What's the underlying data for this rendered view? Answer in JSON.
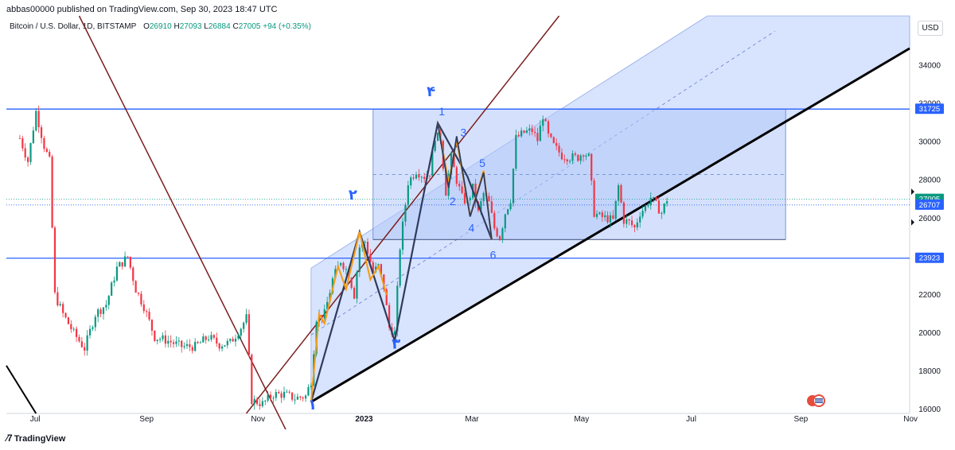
{
  "header": {
    "publisher": "abbas00000 published on TradingView.com, Sep 30, 2023 18:47 UTC"
  },
  "legend": {
    "symbol": "Bitcoin / U.S. Dollar, 1D, BITSTAMP",
    "open_label": "O",
    "open": "26910",
    "high_label": "H",
    "high": "27093",
    "low_label": "L",
    "low": "26884",
    "close_label": "C",
    "close": "27005",
    "change": "+94 (+0.35%)"
  },
  "currency_button": "USD",
  "footer": {
    "brand": "TradingView"
  },
  "colors": {
    "up": "#089981",
    "down": "#f23645",
    "accent": "#2962ff",
    "channel_fill": "#c7d7fc",
    "trendline": "#7b1e1e",
    "wave_orange": "#f39c12",
    "wave_dark": "#2f3b5c"
  },
  "chart_data": {
    "type": "candlestick",
    "x_ticks": [
      "Jul",
      "Sep",
      "Nov",
      "2023",
      "Mar",
      "May",
      "Jul",
      "Sep",
      "Nov"
    ],
    "y_ticks": [
      "34000",
      "32000",
      "30000",
      "28000",
      "26000",
      "22000",
      "20000",
      "18000",
      "16000"
    ],
    "ylim": [
      15800,
      36600
    ],
    "price_labels": [
      {
        "value": 31725,
        "text": "31725",
        "color": "#2962ff"
      },
      {
        "value": 27005,
        "text": "27005",
        "color": "#089981"
      },
      {
        "value": 26707,
        "text": "26707",
        "color": "#2962ff"
      },
      {
        "value": 23923,
        "text": "23923",
        "color": "#2962ff"
      }
    ],
    "horizontal_levels": [
      31725,
      23923
    ],
    "wave_labels_blue_numbers": [
      "1",
      "2",
      "3",
      "4",
      "5",
      "6"
    ],
    "wave_labels_arabic": [
      "۴",
      "۲",
      "۳",
      "۱"
    ],
    "close_path": [
      {
        "t": 0,
        "p": 30200
      },
      {
        "t": 3,
        "p": 29000
      },
      {
        "t": 6,
        "p": 31600
      },
      {
        "t": 9,
        "p": 29800
      },
      {
        "t": 11,
        "p": 29000
      },
      {
        "t": 13,
        "p": 22000
      },
      {
        "t": 16,
        "p": 21000
      },
      {
        "t": 20,
        "p": 20000
      },
      {
        "t": 24,
        "p": 19200
      },
      {
        "t": 28,
        "p": 21000
      },
      {
        "t": 32,
        "p": 21500
      },
      {
        "t": 36,
        "p": 23400
      },
      {
        "t": 40,
        "p": 24000
      },
      {
        "t": 43,
        "p": 22300
      },
      {
        "t": 46,
        "p": 21400
      },
      {
        "t": 50,
        "p": 19800
      },
      {
        "t": 55,
        "p": 19600
      },
      {
        "t": 60,
        "p": 19300
      },
      {
        "t": 65,
        "p": 19300
      },
      {
        "t": 70,
        "p": 19800
      },
      {
        "t": 74,
        "p": 19400
      },
      {
        "t": 78,
        "p": 19500
      },
      {
        "t": 82,
        "p": 20300
      },
      {
        "t": 84,
        "p": 20800
      },
      {
        "t": 86,
        "p": 16500
      },
      {
        "t": 90,
        "p": 16300
      },
      {
        "t": 94,
        "p": 16800
      },
      {
        "t": 98,
        "p": 16800
      },
      {
        "t": 102,
        "p": 16600
      },
      {
        "t": 106,
        "p": 16700
      },
      {
        "t": 108,
        "p": 17500
      },
      {
        "t": 110,
        "p": 20800
      },
      {
        "t": 113,
        "p": 21000
      },
      {
        "t": 116,
        "p": 22800
      },
      {
        "t": 119,
        "p": 23800
      },
      {
        "t": 122,
        "p": 23100
      },
      {
        "t": 124,
        "p": 22000
      },
      {
        "t": 126,
        "p": 24500
      },
      {
        "t": 128,
        "p": 24800
      },
      {
        "t": 131,
        "p": 23200
      },
      {
        "t": 133,
        "p": 23500
      },
      {
        "t": 135,
        "p": 22400
      },
      {
        "t": 137,
        "p": 20300
      },
      {
        "t": 139,
        "p": 20000
      },
      {
        "t": 141,
        "p": 24500
      },
      {
        "t": 144,
        "p": 27900
      },
      {
        "t": 147,
        "p": 28500
      },
      {
        "t": 150,
        "p": 28200
      },
      {
        "t": 152,
        "p": 28400
      },
      {
        "t": 154,
        "p": 30300
      },
      {
        "t": 156,
        "p": 30200
      },
      {
        "t": 158,
        "p": 27400
      },
      {
        "t": 160,
        "p": 29200
      },
      {
        "t": 162,
        "p": 28000
      },
      {
        "t": 164,
        "p": 27100
      },
      {
        "t": 166,
        "p": 26800
      },
      {
        "t": 168,
        "p": 27600
      },
      {
        "t": 170,
        "p": 26300
      },
      {
        "t": 172,
        "p": 27300
      },
      {
        "t": 174,
        "p": 26800
      },
      {
        "t": 176,
        "p": 25500
      },
      {
        "t": 178,
        "p": 25000
      },
      {
        "t": 180,
        "p": 26300
      },
      {
        "t": 182,
        "p": 27000
      },
      {
        "t": 184,
        "p": 30200
      },
      {
        "t": 187,
        "p": 30500
      },
      {
        "t": 190,
        "p": 30600
      },
      {
        "t": 192,
        "p": 30100
      },
      {
        "t": 194,
        "p": 31400
      },
      {
        "t": 196,
        "p": 30300
      },
      {
        "t": 198,
        "p": 29800
      },
      {
        "t": 201,
        "p": 29300
      },
      {
        "t": 204,
        "p": 29200
      },
      {
        "t": 207,
        "p": 29200
      },
      {
        "t": 209,
        "p": 29500
      },
      {
        "t": 211,
        "p": 29200
      },
      {
        "t": 213,
        "p": 26300
      },
      {
        "t": 215,
        "p": 26100
      },
      {
        "t": 218,
        "p": 26000
      },
      {
        "t": 220,
        "p": 25900
      },
      {
        "t": 222,
        "p": 27700
      },
      {
        "t": 224,
        "p": 25900
      },
      {
        "t": 226,
        "p": 25800
      },
      {
        "t": 228,
        "p": 25500
      },
      {
        "t": 230,
        "p": 26300
      },
      {
        "t": 232,
        "p": 26600
      },
      {
        "t": 234,
        "p": 27100
      },
      {
        "t": 236,
        "p": 26700
      },
      {
        "t": 238,
        "p": 26300
      },
      {
        "t": 240,
        "p": 27005
      }
    ]
  }
}
